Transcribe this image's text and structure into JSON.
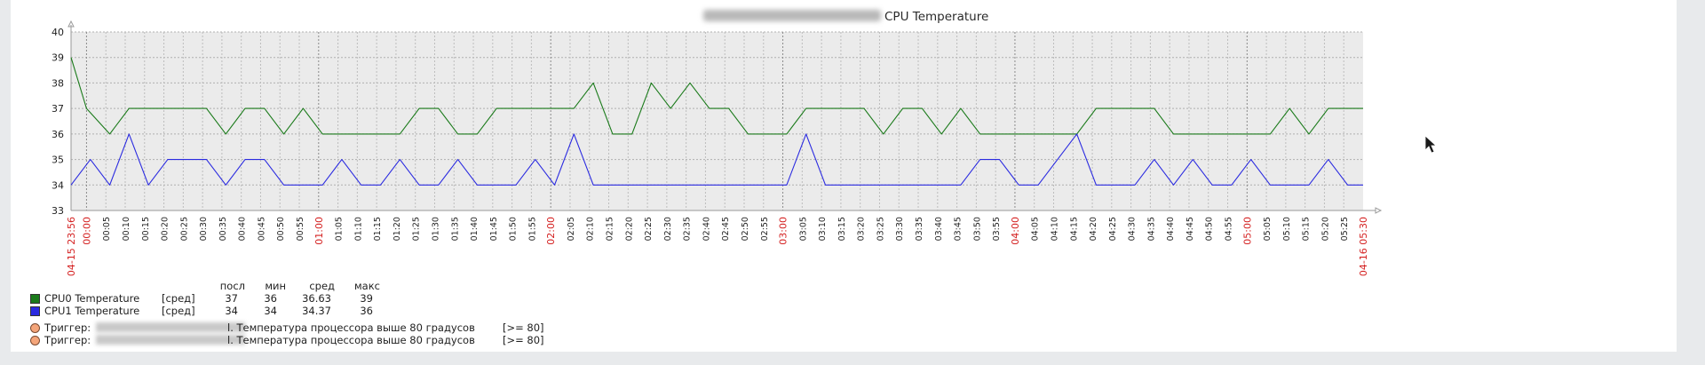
{
  "chart_data": {
    "type": "line",
    "title": "CPU Temperature",
    "ylim": [
      33,
      40
    ],
    "yticks": [
      33,
      34,
      35,
      36,
      37,
      38,
      39,
      40
    ],
    "x_start_label": "04-15 23:56",
    "x_end_label": "04-16 05:30",
    "x_start_minute": -4,
    "x_end_minute": 330,
    "x_ticks": [
      "00:00",
      "00:05",
      "00:10",
      "00:15",
      "00:20",
      "00:25",
      "00:30",
      "00:35",
      "00:40",
      "00:45",
      "00:50",
      "00:55",
      "01:00",
      "01:05",
      "01:10",
      "01:15",
      "01:20",
      "01:25",
      "01:30",
      "01:35",
      "01:40",
      "01:45",
      "01:50",
      "01:55",
      "02:00",
      "02:05",
      "02:10",
      "02:15",
      "02:20",
      "02:25",
      "02:30",
      "02:35",
      "02:40",
      "02:45",
      "02:50",
      "02:55",
      "03:00",
      "03:05",
      "03:10",
      "03:15",
      "03:20",
      "03:25",
      "03:30",
      "03:35",
      "03:40",
      "03:45",
      "03:50",
      "03:55",
      "04:00",
      "04:05",
      "04:10",
      "04:15",
      "04:20",
      "04:25",
      "04:30",
      "04:35",
      "04:40",
      "04:45",
      "04:50",
      "04:55",
      "05:00",
      "05:05",
      "05:10",
      "05:15",
      "05:20",
      "05:25"
    ],
    "x_ticks_minutes": [
      0,
      5,
      10,
      15,
      20,
      25,
      30,
      35,
      40,
      45,
      50,
      55,
      60,
      65,
      70,
      75,
      80,
      85,
      90,
      95,
      100,
      105,
      110,
      115,
      120,
      125,
      130,
      135,
      140,
      145,
      150,
      155,
      160,
      165,
      170,
      175,
      180,
      185,
      190,
      195,
      200,
      205,
      210,
      215,
      220,
      225,
      230,
      235,
      240,
      245,
      250,
      255,
      260,
      265,
      270,
      275,
      280,
      285,
      290,
      295,
      300,
      305,
      310,
      315,
      320,
      325
    ],
    "grid": true,
    "series": [
      {
        "name": "CPU0 Temperature",
        "color": "#1a7a1a",
        "points": [
          [
            -4,
            39
          ],
          [
            0,
            37
          ],
          [
            6,
            36
          ],
          [
            11,
            37
          ],
          [
            16,
            37
          ],
          [
            21,
            37
          ],
          [
            26,
            37
          ],
          [
            31,
            37
          ],
          [
            36,
            36
          ],
          [
            41,
            37
          ],
          [
            46,
            37
          ],
          [
            51,
            36
          ],
          [
            56,
            37
          ],
          [
            61,
            36
          ],
          [
            66,
            36
          ],
          [
            71,
            36
          ],
          [
            76,
            36
          ],
          [
            81,
            36
          ],
          [
            86,
            37
          ],
          [
            91,
            37
          ],
          [
            96,
            36
          ],
          [
            101,
            36
          ],
          [
            106,
            37
          ],
          [
            111,
            37
          ],
          [
            116,
            37
          ],
          [
            121,
            37
          ],
          [
            126,
            37
          ],
          [
            131,
            38
          ],
          [
            136,
            36
          ],
          [
            141,
            36
          ],
          [
            146,
            38
          ],
          [
            151,
            37
          ],
          [
            156,
            38
          ],
          [
            161,
            37
          ],
          [
            166,
            37
          ],
          [
            171,
            36
          ],
          [
            176,
            36
          ],
          [
            181,
            36
          ],
          [
            186,
            37
          ],
          [
            191,
            37
          ],
          [
            196,
            37
          ],
          [
            201,
            37
          ],
          [
            206,
            36
          ],
          [
            211,
            37
          ],
          [
            216,
            37
          ],
          [
            221,
            36
          ],
          [
            226,
            37
          ],
          [
            231,
            36
          ],
          [
            236,
            36
          ],
          [
            241,
            36
          ],
          [
            246,
            36
          ],
          [
            251,
            36
          ],
          [
            256,
            36
          ],
          [
            261,
            37
          ],
          [
            266,
            37
          ],
          [
            271,
            37
          ],
          [
            276,
            37
          ],
          [
            281,
            36
          ],
          [
            286,
            36
          ],
          [
            291,
            36
          ],
          [
            296,
            36
          ],
          [
            301,
            36
          ],
          [
            306,
            36
          ],
          [
            311,
            37
          ],
          [
            316,
            36
          ],
          [
            321,
            37
          ],
          [
            326,
            37
          ],
          [
            330,
            37
          ]
        ]
      },
      {
        "name": "CPU1 Temperature",
        "color": "#2a2ae0",
        "points": [
          [
            -4,
            34
          ],
          [
            1,
            35
          ],
          [
            6,
            34
          ],
          [
            11,
            36
          ],
          [
            16,
            34
          ],
          [
            21,
            35
          ],
          [
            26,
            35
          ],
          [
            31,
            35
          ],
          [
            36,
            34
          ],
          [
            41,
            35
          ],
          [
            46,
            35
          ],
          [
            51,
            34
          ],
          [
            56,
            34
          ],
          [
            61,
            34
          ],
          [
            66,
            35
          ],
          [
            71,
            34
          ],
          [
            76,
            34
          ],
          [
            81,
            35
          ],
          [
            86,
            34
          ],
          [
            91,
            34
          ],
          [
            96,
            35
          ],
          [
            101,
            34
          ],
          [
            106,
            34
          ],
          [
            111,
            34
          ],
          [
            116,
            35
          ],
          [
            121,
            34
          ],
          [
            126,
            36
          ],
          [
            131,
            34
          ],
          [
            136,
            34
          ],
          [
            141,
            34
          ],
          [
            146,
            34
          ],
          [
            151,
            34
          ],
          [
            156,
            34
          ],
          [
            161,
            34
          ],
          [
            166,
            34
          ],
          [
            171,
            34
          ],
          [
            176,
            34
          ],
          [
            181,
            34
          ],
          [
            186,
            36
          ],
          [
            191,
            34
          ],
          [
            196,
            34
          ],
          [
            201,
            34
          ],
          [
            206,
            34
          ],
          [
            211,
            34
          ],
          [
            216,
            34
          ],
          [
            221,
            34
          ],
          [
            226,
            34
          ],
          [
            231,
            35
          ],
          [
            236,
            35
          ],
          [
            241,
            34
          ],
          [
            246,
            34
          ],
          [
            251,
            35
          ],
          [
            256,
            36
          ],
          [
            261,
            34
          ],
          [
            266,
            34
          ],
          [
            271,
            34
          ],
          [
            276,
            35
          ],
          [
            281,
            34
          ],
          [
            286,
            35
          ],
          [
            291,
            34
          ],
          [
            296,
            34
          ],
          [
            301,
            35
          ],
          [
            306,
            34
          ],
          [
            311,
            34
          ],
          [
            316,
            34
          ],
          [
            321,
            35
          ],
          [
            326,
            34
          ],
          [
            330,
            34
          ]
        ]
      }
    ]
  },
  "legend": {
    "headers": {
      "last": "посл",
      "min": "мин",
      "avg": "сред",
      "max": "макс"
    },
    "series": [
      {
        "name": "CPU0 Temperature",
        "func": "[сред]",
        "last": "37",
        "min": "36",
        "avg": "36.63",
        "max": "39",
        "color": "#1a7a1a"
      },
      {
        "name": "CPU1 Temperature",
        "func": "[сред]",
        "last": "34",
        "min": "34",
        "avg": "34.37",
        "max": "36",
        "color": "#2a2ae0"
      }
    ],
    "triggers": [
      {
        "label": "Триггер:",
        "text": "l. Температура процессора выше 80 градусов",
        "condition": "[>= 80]"
      },
      {
        "label": "Триггер:",
        "text": "l. Температура процессора выше 80 градусов",
        "condition": "[>= 80]"
      }
    ]
  }
}
